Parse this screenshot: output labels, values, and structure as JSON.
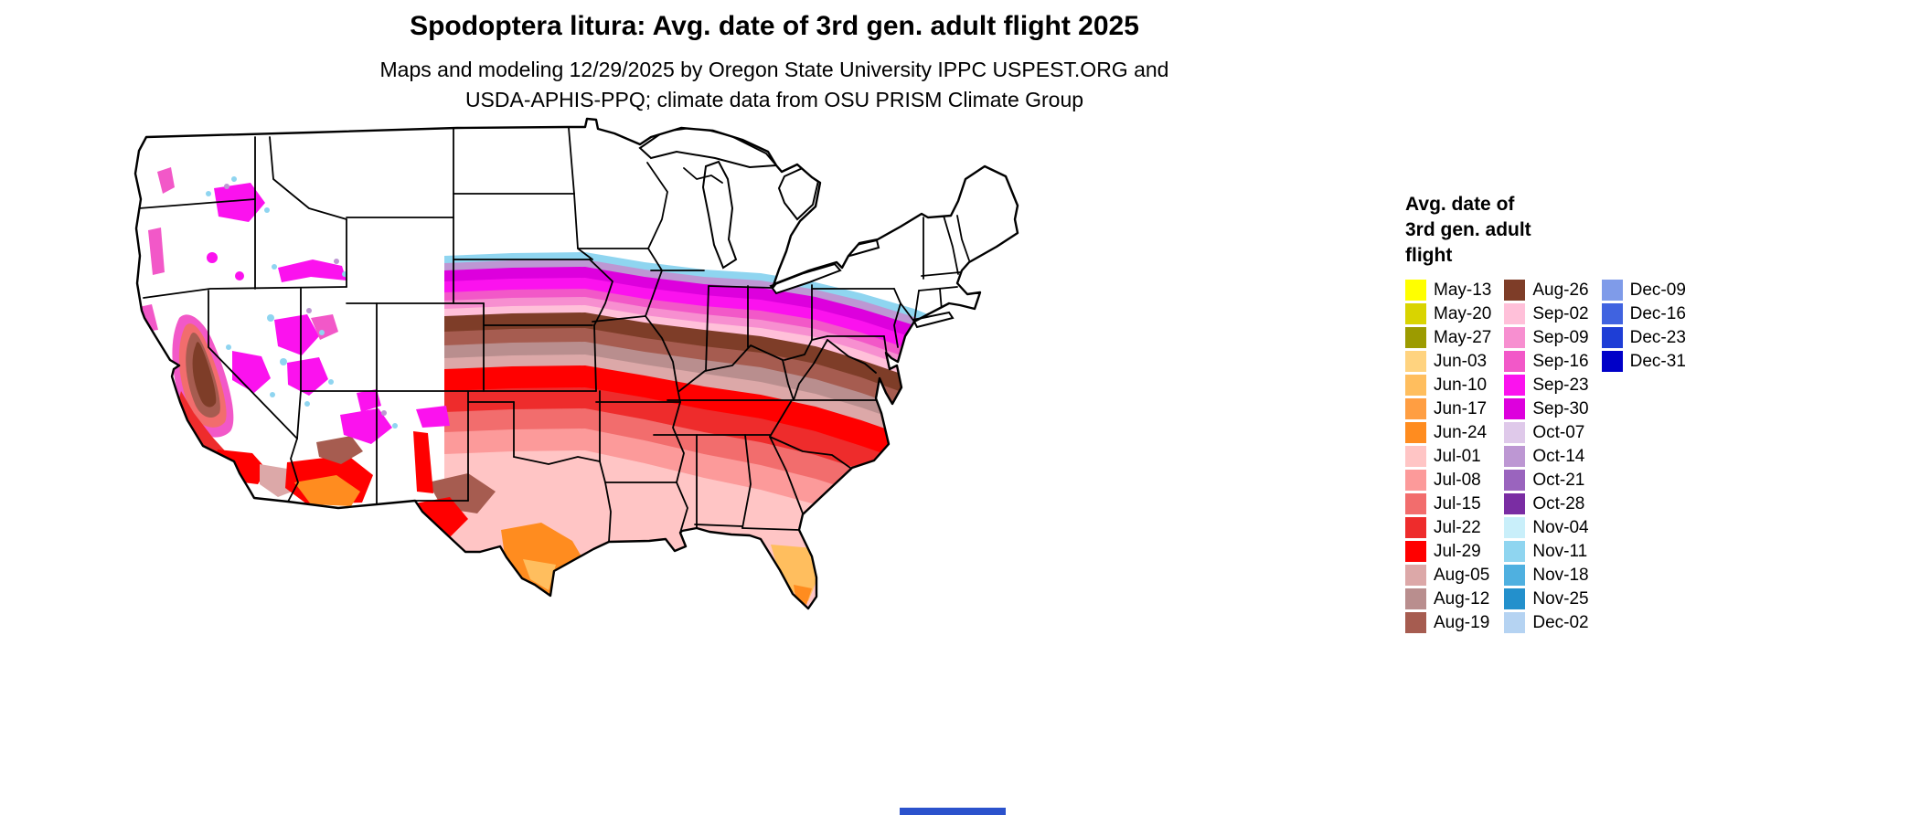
{
  "header": {
    "title": "Spodoptera litura: Avg. date of 3rd gen. adult flight 2025",
    "subtitle_line1": "Maps and modeling 12/29/2025 by Oregon State University IPPC USPEST.ORG and",
    "subtitle_line2": "USDA-APHIS-PPQ; climate data from OSU PRISM Climate Group"
  },
  "map": {
    "region": "Conterminous United States",
    "no_data_color": "#FFFFFF",
    "border_color": "#000000"
  },
  "legend": {
    "title_lines": [
      "Avg. date of",
      "3rd gen. adult",
      "flight"
    ],
    "columns": [
      [
        {
          "label": "May-13",
          "color": "#FFFF00"
        },
        {
          "label": "May-20",
          "color": "#D9D400"
        },
        {
          "label": "May-27",
          "color": "#9C9B00"
        },
        {
          "label": "Jun-03",
          "color": "#FFD37F"
        },
        {
          "label": "Jun-10",
          "color": "#FFBE5E"
        },
        {
          "label": "Jun-17",
          "color": "#FF9E42"
        },
        {
          "label": "Jun-24",
          "color": "#FF8C1F"
        },
        {
          "label": "Jul-01",
          "color": "#FFC5C5"
        },
        {
          "label": "Jul-08",
          "color": "#FC9A9A"
        },
        {
          "label": "Jul-15",
          "color": "#F26D6D"
        },
        {
          "label": "Jul-22",
          "color": "#EE2C2C"
        },
        {
          "label": "Jul-29",
          "color": "#FF0000"
        },
        {
          "label": "Aug-05",
          "color": "#DCA8A8"
        },
        {
          "label": "Aug-12",
          "color": "#B98E8E"
        },
        {
          "label": "Aug-19",
          "color": "#A65C50"
        }
      ],
      [
        {
          "label": "Aug-26",
          "color": "#7E3D28"
        },
        {
          "label": "Sep-02",
          "color": "#FFC0D9"
        },
        {
          "label": "Sep-09",
          "color": "#F78FD0"
        },
        {
          "label": "Sep-16",
          "color": "#F258C8"
        },
        {
          "label": "Sep-23",
          "color": "#FB12EE"
        },
        {
          "label": "Sep-30",
          "color": "#DD00DD"
        },
        {
          "label": "Oct-07",
          "color": "#DFC9EA"
        },
        {
          "label": "Oct-14",
          "color": "#BD97D3"
        },
        {
          "label": "Oct-21",
          "color": "#9A64BE"
        },
        {
          "label": "Oct-28",
          "color": "#7A2DA3"
        },
        {
          "label": "Nov-04",
          "color": "#C9EFFA"
        },
        {
          "label": "Nov-11",
          "color": "#8FD5F0"
        },
        {
          "label": "Nov-18",
          "color": "#4FB0E0"
        },
        {
          "label": "Nov-25",
          "color": "#2390CC"
        },
        {
          "label": "Dec-02",
          "color": "#B5D3F2"
        }
      ],
      [
        {
          "label": "Dec-09",
          "color": "#7F9BE9"
        },
        {
          "label": "Dec-16",
          "color": "#4063E0"
        },
        {
          "label": "Dec-23",
          "color": "#1E3ED6"
        },
        {
          "label": "Dec-31",
          "color": "#0000C8"
        }
      ]
    ]
  }
}
